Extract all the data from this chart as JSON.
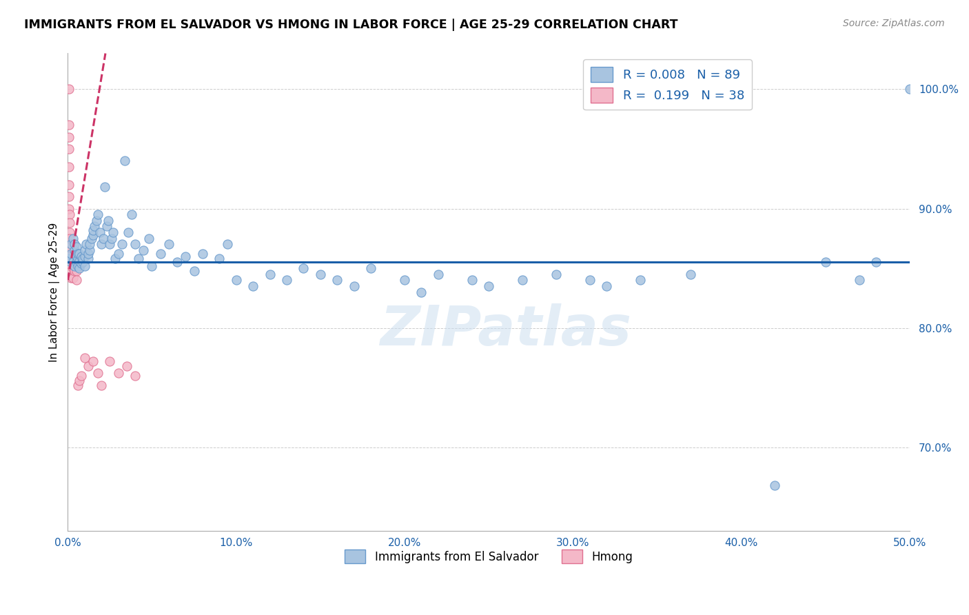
{
  "title": "IMMIGRANTS FROM EL SALVADOR VS HMONG IN LABOR FORCE | AGE 25-29 CORRELATION CHART",
  "source": "Source: ZipAtlas.com",
  "ylabel": "In Labor Force | Age 25-29",
  "xlim": [
    0.0,
    0.5
  ],
  "ylim": [
    0.63,
    1.03
  ],
  "xticks": [
    0.0,
    0.1,
    0.2,
    0.3,
    0.4,
    0.5
  ],
  "xticklabels": [
    "0.0%",
    "10.0%",
    "20.0%",
    "30.0%",
    "40.0%",
    "50.0%"
  ],
  "yticks": [
    0.7,
    0.8,
    0.9,
    1.0
  ],
  "yticklabels": [
    "70.0%",
    "80.0%",
    "90.0%",
    "100.0%"
  ],
  "blue_color": "#a8c4e0",
  "blue_edge": "#6699cc",
  "pink_color": "#f4b8c8",
  "pink_edge": "#e07090",
  "trend_blue_color": "#1a5fa8",
  "trend_pink_color": "#cc3366",
  "legend_R_blue": "0.008",
  "legend_N_blue": "89",
  "legend_R_pink": "0.199",
  "legend_N_pink": "38",
  "blue_scatter_x": [
    0.001,
    0.001,
    0.002,
    0.002,
    0.003,
    0.003,
    0.004,
    0.004,
    0.004,
    0.005,
    0.005,
    0.005,
    0.006,
    0.006,
    0.006,
    0.007,
    0.007,
    0.007,
    0.008,
    0.008,
    0.009,
    0.009,
    0.01,
    0.01,
    0.01,
    0.011,
    0.012,
    0.012,
    0.013,
    0.013,
    0.014,
    0.015,
    0.015,
    0.016,
    0.017,
    0.018,
    0.019,
    0.02,
    0.021,
    0.022,
    0.023,
    0.024,
    0.025,
    0.026,
    0.027,
    0.028,
    0.03,
    0.032,
    0.034,
    0.036,
    0.038,
    0.04,
    0.042,
    0.045,
    0.048,
    0.05,
    0.055,
    0.06,
    0.065,
    0.07,
    0.075,
    0.08,
    0.09,
    0.095,
    0.1,
    0.11,
    0.12,
    0.13,
    0.14,
    0.15,
    0.16,
    0.17,
    0.18,
    0.2,
    0.21,
    0.22,
    0.24,
    0.25,
    0.27,
    0.29,
    0.31,
    0.32,
    0.34,
    0.37,
    0.42,
    0.45,
    0.47,
    0.48,
    0.5
  ],
  "blue_scatter_y": [
    0.856,
    0.858,
    0.87,
    0.862,
    0.855,
    0.875,
    0.852,
    0.865,
    0.87,
    0.855,
    0.86,
    0.868,
    0.852,
    0.858,
    0.862,
    0.85,
    0.856,
    0.862,
    0.854,
    0.86,
    0.855,
    0.858,
    0.852,
    0.86,
    0.865,
    0.87,
    0.858,
    0.862,
    0.865,
    0.87,
    0.875,
    0.878,
    0.882,
    0.885,
    0.89,
    0.895,
    0.88,
    0.87,
    0.875,
    0.918,
    0.885,
    0.89,
    0.87,
    0.875,
    0.88,
    0.858,
    0.862,
    0.87,
    0.94,
    0.88,
    0.895,
    0.87,
    0.858,
    0.865,
    0.875,
    0.852,
    0.862,
    0.87,
    0.855,
    0.86,
    0.848,
    0.862,
    0.858,
    0.87,
    0.84,
    0.835,
    0.845,
    0.84,
    0.85,
    0.845,
    0.84,
    0.835,
    0.85,
    0.84,
    0.83,
    0.845,
    0.84,
    0.835,
    0.84,
    0.845,
    0.84,
    0.835,
    0.84,
    0.845,
    0.668,
    0.855,
    0.84,
    0.855,
    1.0
  ],
  "pink_scatter_x": [
    0.0005,
    0.0005,
    0.0005,
    0.0005,
    0.0005,
    0.0005,
    0.0005,
    0.0005,
    0.001,
    0.001,
    0.001,
    0.001,
    0.001,
    0.001,
    0.001,
    0.002,
    0.002,
    0.002,
    0.003,
    0.003,
    0.003,
    0.004,
    0.004,
    0.005,
    0.005,
    0.005,
    0.006,
    0.007,
    0.008,
    0.01,
    0.012,
    0.015,
    0.018,
    0.02,
    0.025,
    0.03,
    0.035,
    0.04
  ],
  "pink_scatter_y": [
    1.0,
    0.97,
    0.96,
    0.95,
    0.935,
    0.92,
    0.91,
    0.9,
    0.895,
    0.888,
    0.88,
    0.875,
    0.868,
    0.86,
    0.855,
    0.852,
    0.848,
    0.842,
    0.856,
    0.85,
    0.842,
    0.855,
    0.848,
    0.855,
    0.848,
    0.84,
    0.752,
    0.756,
    0.76,
    0.775,
    0.768,
    0.772,
    0.762,
    0.752,
    0.772,
    0.762,
    0.768,
    0.76
  ],
  "trend_blue_slope": 0.0,
  "trend_blue_intercept": 0.855,
  "trend_pink_slope": 8.5,
  "trend_pink_intercept": 0.84,
  "watermark": "ZIPatlas",
  "figsize": [
    14.06,
    8.92
  ],
  "dpi": 100
}
